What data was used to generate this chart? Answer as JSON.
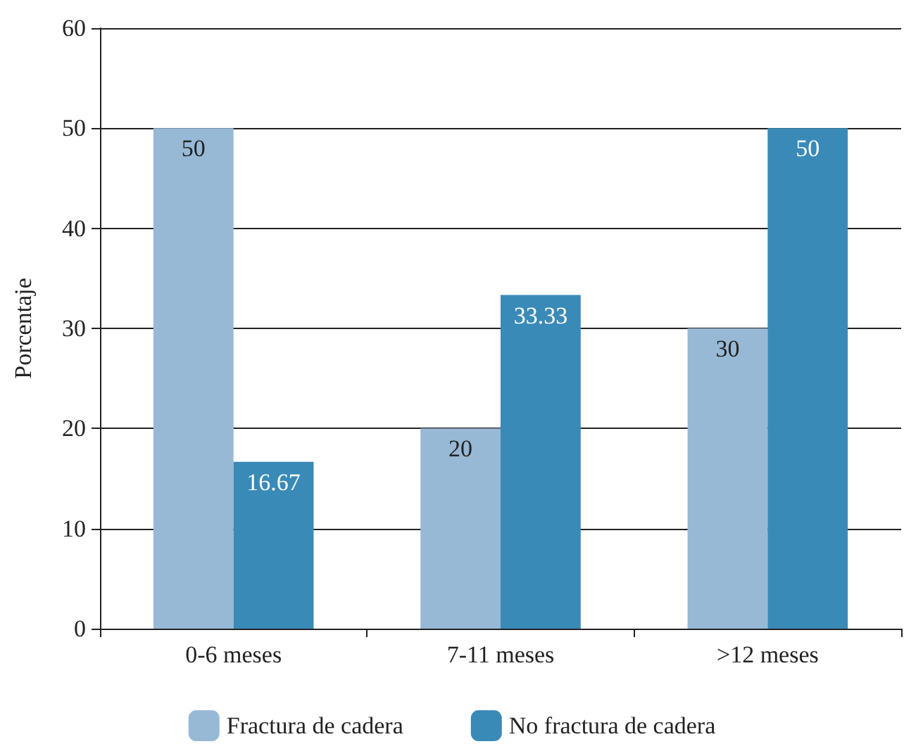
{
  "chart_data": {
    "type": "bar",
    "ylabel": "Porcentaje",
    "categories": [
      "0-6 meses",
      "7-11 meses",
      ">12 meses"
    ],
    "series": [
      {
        "name": "Fractura de cadera",
        "color": "#97b9d6",
        "values": [
          50,
          20,
          30
        ]
      },
      {
        "name": "No fractura de cadera",
        "color": "#3a8ab8",
        "values": [
          16.67,
          33.33,
          50
        ]
      }
    ],
    "ylim": [
      0,
      60
    ],
    "yticks": [
      0,
      10,
      20,
      30,
      40,
      50,
      60
    ],
    "grid": "y",
    "legend": "bottom",
    "data_labels": true
  }
}
